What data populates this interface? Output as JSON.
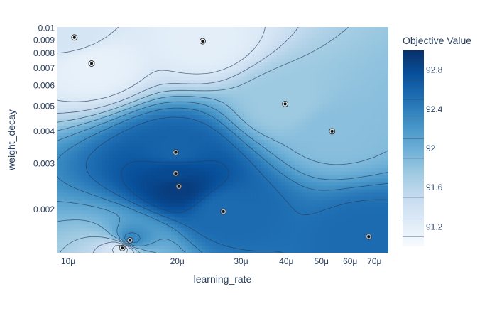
{
  "chart_data": {
    "type": "contour",
    "title": "",
    "xlabel": "learning_rate",
    "ylabel": "weight_decay",
    "x_scale": "log",
    "y_scale": "log",
    "xlim": [
      9.3e-06,
      7.65e-05
    ],
    "ylim": [
      0.00136,
      0.0101
    ],
    "x_tick_labels": [
      {
        "value": 1e-05,
        "label": "10μ"
      },
      {
        "value": 2e-05,
        "label": "20μ"
      },
      {
        "value": 3e-05,
        "label": "30μ"
      },
      {
        "value": 4e-05,
        "label": "40μ"
      },
      {
        "value": 5e-05,
        "label": "50μ"
      },
      {
        "value": 6e-05,
        "label": "60μ"
      },
      {
        "value": 7e-05,
        "label": "70μ"
      }
    ],
    "y_tick_labels": [
      {
        "value": 0.002,
        "label": "0.002"
      },
      {
        "value": 0.003,
        "label": "0.003"
      },
      {
        "value": 0.004,
        "label": "0.004"
      },
      {
        "value": 0.005,
        "label": "0.005"
      },
      {
        "value": 0.006,
        "label": "0.006"
      },
      {
        "value": 0.007,
        "label": "0.007"
      },
      {
        "value": 0.008,
        "label": "0.008"
      },
      {
        "value": 0.009,
        "label": "0.009"
      },
      {
        "value": 0.01,
        "label": "0.01"
      }
    ],
    "colorbar": {
      "title": "Objective Value",
      "range": [
        91.0,
        93.0
      ],
      "ticks": [
        {
          "value": 91.2,
          "label": "91.2"
        },
        {
          "value": 91.6,
          "label": "91.6"
        },
        {
          "value": 92.0,
          "label": "92"
        },
        {
          "value": 92.4,
          "label": "92.4"
        },
        {
          "value": 92.8,
          "label": "92.8"
        }
      ],
      "contour_levels": [
        91.1,
        91.3,
        91.5,
        91.7,
        91.9,
        92.1,
        92.3,
        92.5,
        92.7,
        92.9
      ]
    },
    "colorscale": [
      "#f7fbff",
      "#deebf7",
      "#c6dbef",
      "#9ecae1",
      "#6baed6",
      "#4292c6",
      "#2171b5",
      "#08519c",
      "#08306b"
    ],
    "points": [
      {
        "x": 1.04e-05,
        "y": 0.0092,
        "value": 91.35
      },
      {
        "x": 1.16e-05,
        "y": 0.0073,
        "value": 91.15
      },
      {
        "x": 2.35e-05,
        "y": 0.0089,
        "value": 91.2
      },
      {
        "x": 1.98e-05,
        "y": 0.00332,
        "value": 92.6
      },
      {
        "x": 1.98e-05,
        "y": 0.00275,
        "value": 92.8
      },
      {
        "x": 2.02e-05,
        "y": 0.00245,
        "value": 92.9
      },
      {
        "x": 2.68e-05,
        "y": 0.00196,
        "value": 92.55
      },
      {
        "x": 3.97e-05,
        "y": 0.0051,
        "value": 91.75
      },
      {
        "x": 5.35e-05,
        "y": 0.004,
        "value": 91.85
      },
      {
        "x": 6.75e-05,
        "y": 0.00157,
        "value": 92.55
      },
      {
        "x": 1.48e-05,
        "y": 0.00152,
        "value": 92.35
      },
      {
        "x": 1.41e-05,
        "y": 0.00142,
        "value": 91.25
      }
    ]
  }
}
